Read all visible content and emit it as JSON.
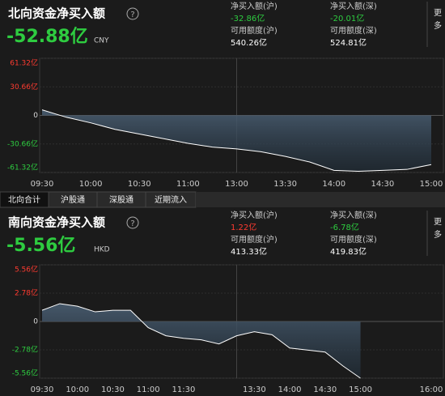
{
  "tabs": [
    "北向合计",
    "沪股通",
    "深股通",
    "近期流入"
  ],
  "more": "更多",
  "chart_data": [
    {
      "type": "area",
      "title": "北向资金净买入额",
      "total": "-52.88亿",
      "currency": "CNY",
      "stats": [
        {
          "label": "净买入额(沪)",
          "value": "-32.86亿",
          "color": "#2ecc40"
        },
        {
          "label": "净买入额(深)",
          "value": "-20.01亿",
          "color": "#2ecc40"
        },
        {
          "label": "可用额度(沪)",
          "value": "540.26亿",
          "color": "#ffffff"
        },
        {
          "label": "可用额度(深)",
          "value": "524.81亿",
          "color": "#ffffff"
        }
      ],
      "x": [
        "09:30",
        "09:45",
        "10:00",
        "10:15",
        "10:30",
        "10:45",
        "11:00",
        "11:15",
        "13:00",
        "13:15",
        "13:30",
        "13:45",
        "14:00",
        "14:15",
        "14:30",
        "14:45",
        "15:00"
      ],
      "values": [
        6,
        -2,
        -8,
        -15,
        -20,
        -25,
        -30,
        -34,
        -36,
        -39,
        -44,
        -50,
        -59,
        -60,
        -59,
        -58,
        -52.88
      ],
      "ylim": [
        -61.32,
        61.32
      ],
      "yticks": [
        {
          "value": 61.32,
          "label": "61.32亿"
        },
        {
          "value": 30.66,
          "label": "30.66亿"
        },
        0,
        {
          "value": -30.66,
          "label": "-30.66亿"
        },
        {
          "value": -61.32,
          "label": "-61.32亿"
        }
      ],
      "xticks": [
        "09:30",
        "10:00",
        "10:30",
        "11:00",
        "13:00",
        "13:30",
        "14:00",
        "14:30",
        "15:00"
      ],
      "color": "#ffffff"
    },
    {
      "type": "area",
      "title": "南向资金净买入额",
      "total": "-5.56亿",
      "currency": "HKD",
      "stats": [
        {
          "label": "净买入额(沪)",
          "value": "1.22亿",
          "color": "#ff3b30"
        },
        {
          "label": "净买入额(深)",
          "value": "-6.78亿",
          "color": "#2ecc40"
        },
        {
          "label": "可用额度(沪)",
          "value": "413.33亿",
          "color": "#ffffff"
        },
        {
          "label": "可用额度(深)",
          "value": "419.83亿",
          "color": "#ffffff"
        }
      ],
      "x": [
        "09:30",
        "09:45",
        "10:00",
        "10:15",
        "10:30",
        "10:45",
        "11:00",
        "11:15",
        "11:30",
        "11:45",
        "13:00",
        "13:15",
        "13:30",
        "13:45",
        "14:00",
        "14:15",
        "14:30",
        "14:45",
        "15:00",
        "15:15",
        "15:30",
        "15:45",
        "16:00"
      ],
      "values": [
        1.1,
        1.75,
        1.5,
        0.95,
        1.1,
        1.1,
        -0.6,
        -1.4,
        -1.65,
        -1.8,
        -2.2,
        -1.4,
        -1.0,
        -1.3,
        -2.6,
        -2.8,
        -3.0,
        -4.35,
        -5.56,
        null,
        null,
        null,
        null
      ],
      "ylim": [
        -5.56,
        5.56
      ],
      "yticks": [
        {
          "value": 5.56,
          "label": "5.56亿"
        },
        {
          "value": 2.78,
          "label": "2.78亿"
        },
        0,
        {
          "value": -2.78,
          "label": "-2.78亿"
        },
        {
          "value": -5.56,
          "label": "-5.56亿"
        }
      ],
      "xticks": [
        "09:30",
        "10:00",
        "10:30",
        "11:00",
        "11:30",
        "13:30",
        "14:00",
        "14:30",
        "15:00",
        "16:00"
      ],
      "color": "#ffffff"
    }
  ]
}
